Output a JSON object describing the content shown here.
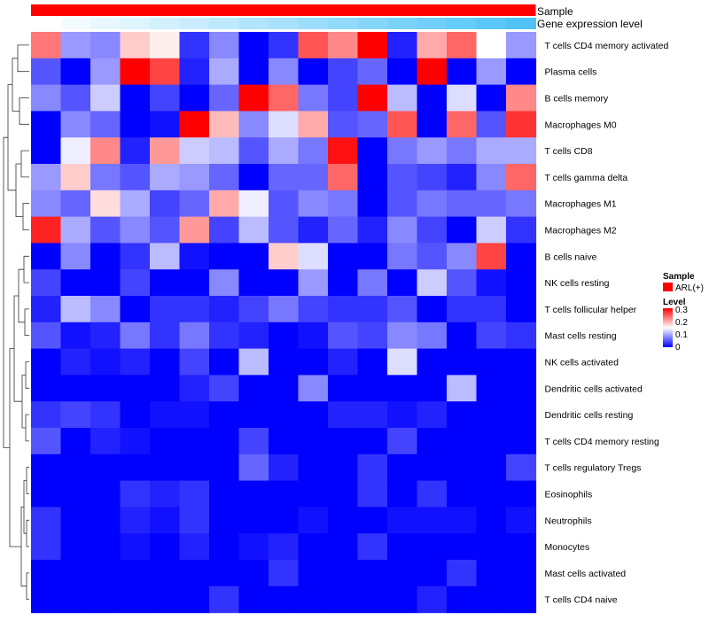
{
  "chart_data": {
    "type": "heatmap",
    "title": "",
    "row_labels": [
      "T cells CD4 memory activated",
      "Plasma cells",
      "B cells memory",
      "Macrophages M0",
      "T cells CD8",
      "T cells gamma delta",
      "Macrophages M1",
      "Macrophages M2",
      "B cells naive",
      "NK cells resting",
      "T cells follicular helper",
      "Mast cells resting",
      "NK cells activated",
      "Dendritic cells activated",
      "Dendritic cells resting",
      "T cells CD4 memory resting",
      "T cells regulatory  Tregs",
      "Eosinophils",
      "Neutrophils",
      "Monocytes",
      "Mast cells activated",
      "T cells CD4 naive"
    ],
    "column_count": 17,
    "values": [
      [
        0.23,
        0.09,
        0.08,
        0.18,
        0.16,
        0.03,
        0.08,
        0.0,
        0.03,
        0.25,
        0.22,
        0.31,
        0.02,
        0.2,
        0.24,
        0.15,
        0.09
      ],
      [
        0.05,
        0.0,
        0.09,
        0.32,
        0.26,
        0.02,
        0.1,
        0.0,
        0.08,
        0.0,
        0.04,
        0.06,
        0.0,
        0.32,
        0.0,
        0.09,
        0.0
      ],
      [
        0.08,
        0.05,
        0.12,
        0.0,
        0.04,
        0.0,
        0.06,
        0.32,
        0.24,
        0.07,
        0.04,
        0.32,
        0.11,
        0.0,
        0.13,
        0.0,
        0.22
      ],
      [
        0.0,
        0.08,
        0.06,
        0.0,
        0.01,
        0.31,
        0.19,
        0.08,
        0.13,
        0.2,
        0.05,
        0.06,
        0.25,
        0.0,
        0.24,
        0.05,
        0.27
      ],
      [
        0.0,
        0.14,
        0.22,
        0.02,
        0.21,
        0.12,
        0.11,
        0.05,
        0.1,
        0.07,
        0.29,
        0.0,
        0.07,
        0.09,
        0.07,
        0.1,
        0.1
      ],
      [
        0.09,
        0.18,
        0.07,
        0.05,
        0.1,
        0.09,
        0.06,
        0.0,
        0.06,
        0.06,
        0.24,
        0.0,
        0.05,
        0.04,
        0.02,
        0.08,
        0.24
      ],
      [
        0.08,
        0.06,
        0.17,
        0.1,
        0.04,
        0.06,
        0.2,
        0.14,
        0.05,
        0.08,
        0.07,
        0.0,
        0.05,
        0.07,
        0.06,
        0.06,
        0.07
      ],
      [
        0.28,
        0.1,
        0.05,
        0.08,
        0.05,
        0.21,
        0.04,
        0.11,
        0.05,
        0.02,
        0.06,
        0.02,
        0.08,
        0.04,
        0.0,
        0.12,
        0.03
      ],
      [
        0.0,
        0.08,
        0.0,
        0.03,
        0.11,
        0.01,
        0.0,
        0.0,
        0.18,
        0.13,
        0.0,
        0.0,
        0.07,
        0.05,
        0.08,
        0.26,
        0.0
      ],
      [
        0.04,
        0.0,
        0.0,
        0.04,
        0.0,
        0.0,
        0.08,
        0.0,
        0.0,
        0.09,
        0.0,
        0.07,
        0.0,
        0.12,
        0.05,
        0.01,
        0.0
      ],
      [
        0.02,
        0.11,
        0.08,
        0.0,
        0.03,
        0.03,
        0.02,
        0.04,
        0.07,
        0.04,
        0.03,
        0.03,
        0.05,
        0.0,
        0.03,
        0.03,
        0.0
      ],
      [
        0.05,
        0.01,
        0.02,
        0.07,
        0.03,
        0.07,
        0.03,
        0.02,
        0.0,
        0.01,
        0.05,
        0.04,
        0.08,
        0.07,
        0.0,
        0.04,
        0.03
      ],
      [
        0.0,
        0.02,
        0.01,
        0.02,
        0.0,
        0.04,
        0.0,
        0.11,
        0.0,
        0.0,
        0.02,
        0.0,
        0.13,
        0.0,
        0.0,
        0.0,
        0.0
      ],
      [
        0.0,
        0.0,
        0.0,
        0.0,
        0.0,
        0.02,
        0.04,
        0.0,
        0.0,
        0.08,
        0.0,
        0.0,
        0.0,
        0.0,
        0.11,
        0.0,
        0.0
      ],
      [
        0.03,
        0.04,
        0.03,
        0.0,
        0.01,
        0.01,
        0.0,
        0.0,
        0.0,
        0.0,
        0.02,
        0.02,
        0.01,
        0.02,
        0.0,
        0.0,
        0.0
      ],
      [
        0.05,
        0.0,
        0.02,
        0.01,
        0.0,
        0.0,
        0.0,
        0.04,
        0.0,
        0.0,
        0.0,
        0.0,
        0.04,
        0.0,
        0.0,
        0.0,
        0.0
      ],
      [
        0.0,
        0.0,
        0.0,
        0.0,
        0.0,
        0.0,
        0.0,
        0.06,
        0.02,
        0.0,
        0.0,
        0.03,
        0.0,
        0.0,
        0.0,
        0.0,
        0.04
      ],
      [
        0.0,
        0.0,
        0.0,
        0.03,
        0.02,
        0.03,
        0.0,
        0.0,
        0.0,
        0.0,
        0.0,
        0.03,
        0.0,
        0.03,
        0.0,
        0.0,
        0.0
      ],
      [
        0.03,
        0.0,
        0.0,
        0.02,
        0.01,
        0.03,
        0.0,
        0.0,
        0.0,
        0.01,
        0.0,
        0.0,
        0.01,
        0.01,
        0.01,
        0.0,
        0.01
      ],
      [
        0.03,
        0.0,
        0.0,
        0.01,
        0.0,
        0.02,
        0.0,
        0.01,
        0.02,
        0.0,
        0.0,
        0.03,
        0.0,
        0.0,
        0.0,
        0.0,
        0.0
      ],
      [
        0.0,
        0.0,
        0.0,
        0.0,
        0.0,
        0.0,
        0.0,
        0.0,
        0.03,
        0.0,
        0.0,
        0.0,
        0.0,
        0.0,
        0.03,
        0.0,
        0.0
      ],
      [
        0.0,
        0.0,
        0.0,
        0.0,
        0.0,
        0.0,
        0.03,
        0.0,
        0.0,
        0.0,
        0.0,
        0.0,
        0.0,
        0.02,
        0.0,
        0.0,
        0.0
      ]
    ],
    "color_scale": {
      "min": 0,
      "max": 0.3,
      "stops": [
        {
          "value": 0,
          "color": "#0000ff"
        },
        {
          "value": 0.15,
          "color": "#ffffff"
        },
        {
          "value": 0.3,
          "color": "#ff0000"
        }
      ]
    },
    "annotations": [
      {
        "name": "Sample",
        "color": "#ff0000"
      },
      {
        "name": "Gene expression level",
        "gradient": [
          "#ffffff",
          "#4fc3f7"
        ]
      }
    ],
    "legend": {
      "sample_title": "Sample",
      "sample_entry": "ARL(+)",
      "sample_color": "#ff0000",
      "level_title": "Level",
      "level_ticks": [
        "0.3",
        "0.2",
        "0.1",
        "0"
      ],
      "placement": "right"
    }
  }
}
